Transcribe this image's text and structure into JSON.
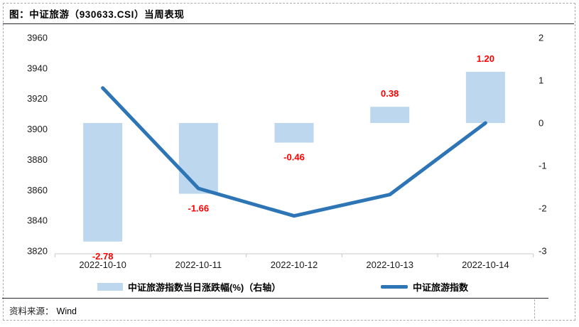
{
  "figure": {
    "title": "图：中证旅游（930633.CSI）当周表现"
  },
  "source": {
    "label": "资料来源：",
    "value": "Wind"
  },
  "legend": {
    "bar_label": "中证旅游指数当日涨跌幅(%)（右轴）",
    "line_label": "中证旅游指数"
  },
  "colors": {
    "bar": "#BDD7EE",
    "line": "#2E75B6",
    "data_label": "#FF0000",
    "axis_line": "#C8C8C8",
    "tick_text": "#1a1a1a"
  },
  "chart_data": {
    "type": "bar+line combo",
    "categories": [
      "2022-10-10",
      "2022-10-11",
      "2022-10-12",
      "2022-10-13",
      "2022-10-14"
    ],
    "series": [
      {
        "name": "中证旅游指数当日涨跌幅(%)（右轴）",
        "type": "bar",
        "axis": "right",
        "values": [
          -2.78,
          -1.66,
          -0.46,
          0.38,
          1.2
        ],
        "data_labels": [
          "-2.78",
          "-1.66",
          "-0.46",
          "0.38",
          "1.20"
        ],
        "data_label_color": "#FF0000",
        "color": "#BDD7EE"
      },
      {
        "name": "中证旅游指数",
        "type": "line",
        "axis": "left",
        "values": [
          3927,
          3861,
          3843,
          3857,
          3904
        ],
        "color": "#2E75B6"
      }
    ],
    "left_axis": {
      "min": 3820,
      "max": 3960,
      "ticks": [
        3960,
        3940,
        3920,
        3900,
        3880,
        3860,
        3840,
        3820
      ]
    },
    "right_axis": {
      "min": -3,
      "max": 2,
      "ticks": [
        2,
        1,
        0,
        -1,
        -2,
        -3
      ]
    },
    "grid": false,
    "legend_position": "bottom",
    "data_labels_shown": true
  }
}
